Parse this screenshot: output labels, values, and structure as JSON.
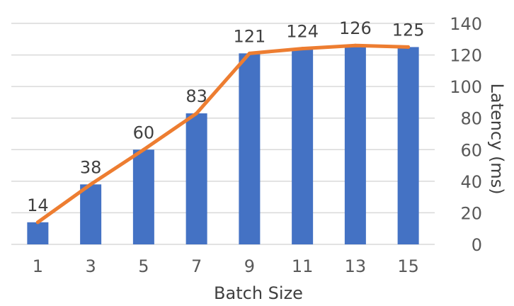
{
  "chart_data": {
    "type": "bar",
    "categories": [
      "1",
      "3",
      "5",
      "7",
      "9",
      "11",
      "13",
      "15"
    ],
    "series": [
      {
        "type": "bar",
        "values": [
          14,
          38,
          60,
          83,
          121,
          124,
          126,
          125
        ]
      },
      {
        "type": "line",
        "values": [
          14,
          38,
          60,
          83,
          121,
          124,
          126,
          125
        ]
      }
    ],
    "data_labels": [
      "14",
      "38",
      "60",
      "83",
      "121",
      "124",
      "126",
      "125"
    ],
    "xlabel": "Batch Size",
    "ylabel": "Latency (ms)",
    "ylim": [
      0,
      140
    ],
    "y_ticks": [
      "0",
      "20",
      "40",
      "60",
      "80",
      "100",
      "120",
      "140"
    ],
    "y_axis_side": "right",
    "grid": true,
    "legend": "none",
    "colors": {
      "bar": "#4472C4",
      "line": "#ED7D31",
      "grid": "#D9D9D9"
    }
  }
}
